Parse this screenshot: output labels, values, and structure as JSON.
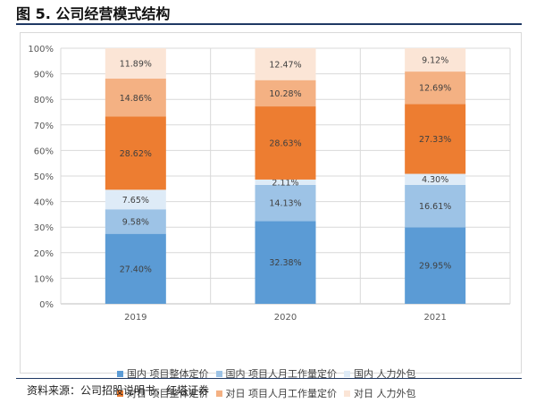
{
  "figure": {
    "title": "图 5. 公司经营模式结构",
    "source": "资料来源：公司招股说明书，红塔证券"
  },
  "chart_data": {
    "type": "bar",
    "stacked": true,
    "categories": [
      "2019",
      "2020",
      "2021"
    ],
    "ylim": [
      0,
      100
    ],
    "yticks": [
      "0%",
      "10%",
      "20%",
      "30%",
      "40%",
      "50%",
      "60%",
      "70%",
      "80%",
      "90%",
      "100%"
    ],
    "grid": true,
    "legend_position": "bottom",
    "series": [
      {
        "name": "国内 项目整体定价",
        "color": "#5b9bd5",
        "values": [
          27.4,
          32.38,
          29.95
        ],
        "labels": [
          "27.40%",
          "32.38%",
          "29.95%"
        ]
      },
      {
        "name": "国内 项目人月工作量定价",
        "color": "#9dc3e6",
        "values": [
          9.58,
          14.13,
          16.61
        ],
        "labels": [
          "9.58%",
          "14.13%",
          "16.61%"
        ]
      },
      {
        "name": "国内 人力外包",
        "color": "#deebf7",
        "values": [
          7.65,
          2.11,
          4.3
        ],
        "labels": [
          "7.65%",
          "2.11%",
          "4.30%"
        ]
      },
      {
        "name": "对日 项目整体定价",
        "color": "#ed7d31",
        "values": [
          28.62,
          28.63,
          27.33
        ],
        "labels": [
          "28.62%",
          "28.63%",
          "27.33%"
        ]
      },
      {
        "name": "对日 项目人月工作量定价",
        "color": "#f4b183",
        "values": [
          14.86,
          10.28,
          12.69
        ],
        "labels": [
          "14.86%",
          "10.28%",
          "12.69%"
        ]
      },
      {
        "name": "对日 人力外包",
        "color": "#fbe5d6",
        "values": [
          11.89,
          12.47,
          9.12
        ],
        "labels": [
          "11.89%",
          "12.47%",
          "9.12%"
        ]
      }
    ]
  }
}
